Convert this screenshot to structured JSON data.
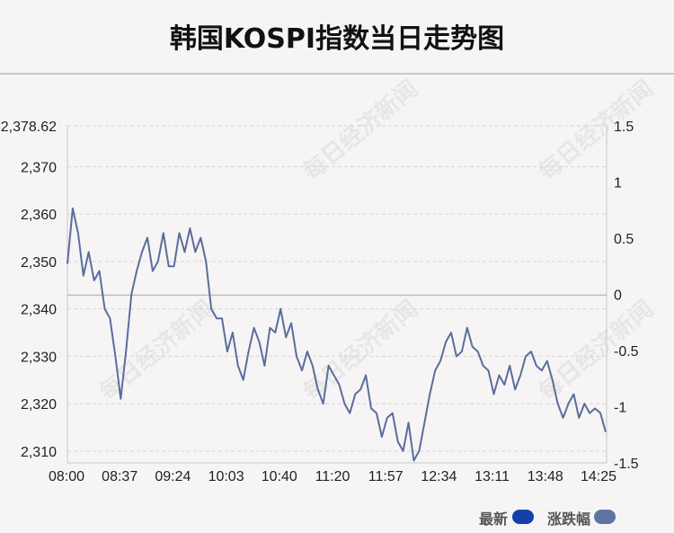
{
  "page": {
    "title": "韩国KOSPI指数当日走势图",
    "watermark": "每日经济新闻"
  },
  "legend": {
    "items": [
      {
        "label": "最新",
        "color": "#1440a8"
      },
      {
        "label": "涨跌幅",
        "color": "#5c75a3"
      }
    ]
  },
  "colors": {
    "line": "#5a6e9a",
    "grid": "#d8d5d7",
    "zero_line": "#bfbcbe"
  },
  "chart_data": {
    "type": "line",
    "title": "韩国KOSPI指数当日走势图",
    "x_ticks": [
      "08:00",
      "08:37",
      "09:24",
      "10:03",
      "10:40",
      "11:20",
      "11:57",
      "12:34",
      "13:11",
      "13:48",
      "14:25"
    ],
    "y_left_ticks": [
      "2,378.62",
      "2,370",
      "2,360",
      "2,350",
      "2,340",
      "2,330",
      "2,320",
      "2,310"
    ],
    "y_right_ticks": [
      "1.5",
      "1",
      "0.5",
      "0",
      "-0.5",
      "-1",
      "-1.5"
    ],
    "y_left_range": [
      2307.5,
      2378.62
    ],
    "y_right_range": [
      -1.5,
      1.5
    ],
    "reference_value": 2342.9,
    "grid": true,
    "series": [
      {
        "name": "最新",
        "values": [
          2349.5,
          2361.2,
          2356,
          2347,
          2352,
          2346,
          2348,
          2340,
          2338,
          2330,
          2321,
          2331,
          2343,
          2348,
          2352,
          2355,
          2348,
          2350,
          2356,
          2349,
          2349,
          2356,
          2352,
          2357,
          2352,
          2355,
          2350,
          2340,
          2338,
          2338,
          2331,
          2335,
          2328,
          2325,
          2331,
          2336,
          2333,
          2328,
          2336,
          2335,
          2340,
          2334,
          2337,
          2330,
          2327,
          2331,
          2328,
          2323,
          2320,
          2328,
          2326,
          2324,
          2320,
          2318,
          2322,
          2323,
          2326,
          2319,
          2318,
          2313,
          2317,
          2318,
          2312,
          2310,
          2316,
          2308,
          2310,
          2316,
          2322,
          2327,
          2329,
          2333,
          2335,
          2330,
          2331,
          2336,
          2332,
          2331,
          2328,
          2327,
          2322,
          2326,
          2324,
          2328,
          2323,
          2326,
          2330,
          2331,
          2328,
          2327,
          2329,
          2325,
          2320,
          2317,
          2320,
          2322,
          2317,
          2320,
          2318,
          2319,
          2318,
          2314
        ]
      }
    ]
  }
}
